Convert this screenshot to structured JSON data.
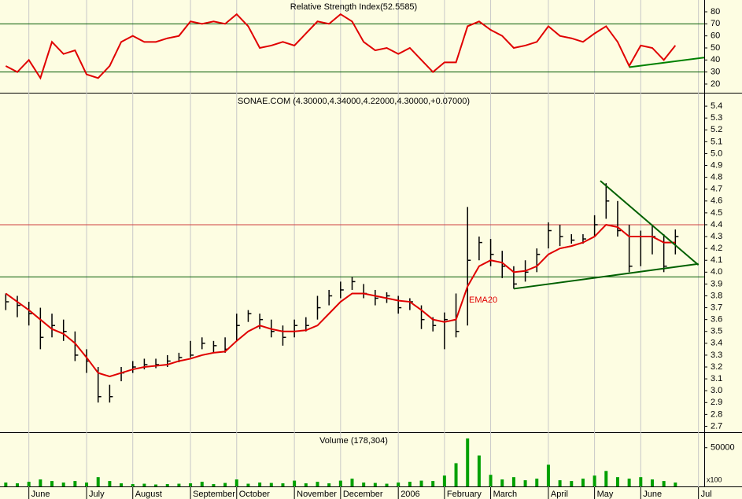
{
  "chart_data": [
    {
      "type": "line",
      "title": "Relative Strength Index(52.5585)",
      "ylim": [
        12.8,
        89.8
      ],
      "yticks": [
        20,
        30,
        40,
        50,
        60,
        70,
        80
      ],
      "hlines": [
        {
          "value": 70,
          "color": "#005a00"
        },
        {
          "value": 30,
          "color": "#005a00"
        }
      ],
      "trendlines": [
        {
          "x": [
            54,
            60.5
          ],
          "y": [
            34,
            42
          ],
          "color": "#008000"
        }
      ],
      "series": [
        {
          "name": "RSI",
          "color": "#e00000",
          "values": [
            35,
            30,
            40,
            25,
            55,
            45,
            48,
            28,
            25,
            35,
            55,
            60,
            55,
            55,
            58,
            60,
            72,
            70,
            72,
            70,
            78,
            68,
            50,
            52,
            55,
            52,
            62,
            72,
            70,
            78,
            72,
            55,
            48,
            50,
            45,
            50,
            40,
            30,
            38,
            38,
            68,
            72,
            65,
            60,
            50,
            52,
            55,
            68,
            60,
            58,
            55,
            62,
            68,
            55,
            35,
            52,
            50,
            40,
            52,
            null,
            null
          ]
        }
      ]
    },
    {
      "type": "hlc",
      "title": "SONAE.COM (4.30000,4.34000,4.22000,4.30000,+0.07000)",
      "ylim": [
        2.65,
        5.5
      ],
      "yticks": [
        {
          "value": 2.7,
          "label": "2.7"
        },
        {
          "value": 2.8,
          "label": "2.8"
        },
        {
          "value": 2.9,
          "label": "2.9"
        },
        {
          "value": 3.0,
          "label": "3.0"
        },
        {
          "value": 3.1,
          "label": "3.1"
        },
        {
          "value": 3.2,
          "label": "3.2"
        },
        {
          "value": 3.3,
          "label": "3.3"
        },
        {
          "value": 3.4,
          "label": "3.4"
        },
        {
          "value": 3.5,
          "label": "3.5"
        },
        {
          "value": 3.6,
          "label": "3.6"
        },
        {
          "value": 3.7,
          "label": "3.7"
        },
        {
          "value": 3.8,
          "label": "3.8"
        },
        {
          "value": 3.9,
          "label": "3.9"
        },
        {
          "value": 4.0,
          "label": "4.0"
        },
        {
          "value": 4.1,
          "label": "4.1"
        },
        {
          "value": 4.2,
          "label": "4.2"
        },
        {
          "value": 4.3,
          "label": "4.3"
        },
        {
          "value": 4.4,
          "label": "4.4"
        },
        {
          "value": 4.5,
          "label": "4.5"
        },
        {
          "value": 4.6,
          "label": "4.6"
        },
        {
          "value": 4.7,
          "label": "4.7"
        },
        {
          "value": 4.8,
          "label": "4.8"
        },
        {
          "value": 4.9,
          "label": "4.9"
        },
        {
          "value": 5.0,
          "label": "5.0"
        },
        {
          "value": 5.1,
          "label": "5.1"
        },
        {
          "value": 5.2,
          "label": "5.2"
        },
        {
          "value": 5.3,
          "label": "5.3"
        },
        {
          "value": 5.4,
          "label": "5.4"
        }
      ],
      "hlines": [
        {
          "value": 4.4,
          "color": "#d04040"
        },
        {
          "value": 3.96,
          "color": "#005a00"
        }
      ],
      "trendlines": [
        {
          "x": [
            51.5,
            60
          ],
          "y": [
            4.77,
            4.06
          ],
          "color": "#006000"
        },
        {
          "x": [
            44,
            60
          ],
          "y": [
            3.86,
            4.07
          ],
          "color": "#006000"
        }
      ],
      "bar_color": "#000000",
      "high": [
        3.82,
        3.8,
        3.75,
        3.7,
        3.65,
        3.6,
        3.5,
        3.35,
        3.2,
        3.05,
        3.2,
        3.25,
        3.27,
        3.27,
        3.3,
        3.32,
        3.42,
        3.45,
        3.42,
        3.45,
        3.65,
        3.68,
        3.65,
        3.6,
        3.55,
        3.6,
        3.62,
        3.8,
        3.85,
        3.92,
        3.96,
        3.9,
        3.85,
        3.83,
        3.8,
        3.78,
        3.72,
        3.62,
        3.66,
        3.82,
        4.55,
        4.3,
        4.28,
        4.18,
        4.05,
        4.1,
        4.2,
        4.42,
        4.4,
        4.32,
        4.32,
        4.48,
        4.75,
        4.6,
        4.4,
        4.35,
        4.4,
        4.32,
        4.36,
        null,
        null
      ],
      "low": [
        3.68,
        3.62,
        3.55,
        3.35,
        3.45,
        3.42,
        3.25,
        3.15,
        2.9,
        2.9,
        3.08,
        3.15,
        3.18,
        3.19,
        3.2,
        3.24,
        3.28,
        3.35,
        3.32,
        3.32,
        3.42,
        3.58,
        3.52,
        3.45,
        3.38,
        3.45,
        3.5,
        3.6,
        3.72,
        3.78,
        3.85,
        3.78,
        3.72,
        3.74,
        3.65,
        3.68,
        3.52,
        3.5,
        3.35,
        3.45,
        3.55,
        4.1,
        4.05,
        3.95,
        3.86,
        3.92,
        4.0,
        4.2,
        4.22,
        4.24,
        4.24,
        4.3,
        4.45,
        4.3,
        4.0,
        4.05,
        4.15,
        4.0,
        4.15,
        null,
        null
      ],
      "close": [
        3.75,
        3.72,
        3.65,
        3.45,
        3.55,
        3.5,
        3.3,
        3.25,
        2.95,
        2.95,
        3.15,
        3.2,
        3.22,
        3.22,
        3.25,
        3.28,
        3.3,
        3.4,
        3.38,
        3.35,
        3.55,
        3.65,
        3.6,
        3.5,
        3.45,
        3.55,
        3.55,
        3.7,
        3.8,
        3.85,
        3.92,
        3.82,
        3.78,
        3.8,
        3.7,
        3.75,
        3.6,
        3.55,
        3.6,
        3.5,
        4.1,
        4.25,
        4.15,
        4.05,
        3.9,
        4.0,
        4.15,
        4.35,
        4.3,
        4.27,
        4.28,
        4.4,
        4.6,
        4.35,
        4.05,
        4.3,
        4.3,
        4.05,
        4.3,
        null,
        null
      ],
      "series": [
        {
          "name": "EMA20",
          "color": "#e00000",
          "values": [
            3.82,
            3.75,
            3.68,
            3.6,
            3.52,
            3.48,
            3.4,
            3.28,
            3.15,
            3.12,
            3.15,
            3.18,
            3.2,
            3.21,
            3.22,
            3.25,
            3.27,
            3.3,
            3.32,
            3.33,
            3.42,
            3.5,
            3.55,
            3.52,
            3.5,
            3.5,
            3.51,
            3.55,
            3.65,
            3.75,
            3.82,
            3.82,
            3.8,
            3.78,
            3.76,
            3.75,
            3.68,
            3.6,
            3.58,
            3.6,
            3.88,
            4.05,
            4.1,
            4.08,
            4.0,
            4.01,
            4.05,
            4.15,
            4.2,
            4.22,
            4.25,
            4.3,
            4.4,
            4.38,
            4.3,
            4.3,
            4.3,
            4.25,
            4.25,
            null,
            null
          ]
        }
      ]
    },
    {
      "type": "bar",
      "title": "Volume (178,304)",
      "unit_label": "x100",
      "color": "#00a000",
      "ylim": [
        0,
        68000
      ],
      "yticks": [
        50000
      ],
      "categories": [
        null,
        null,
        "June",
        null,
        null,
        null,
        null,
        "July",
        null,
        null,
        null,
        "August",
        null,
        null,
        null,
        null,
        "September",
        null,
        null,
        null,
        "October",
        null,
        null,
        null,
        null,
        "November",
        null,
        null,
        null,
        "December",
        null,
        null,
        null,
        null,
        "2006",
        null,
        null,
        null,
        "February",
        null,
        null,
        null,
        "March",
        null,
        null,
        null,
        null,
        "April",
        null,
        null,
        null,
        "May",
        null,
        null,
        null,
        "June",
        null,
        null,
        null,
        null,
        "Jul"
      ],
      "values": [
        5000,
        4000,
        6000,
        9000,
        7000,
        5000,
        7000,
        5000,
        12000,
        7000,
        4000,
        3000,
        3500,
        2500,
        3000,
        3500,
        4000,
        6000,
        3000,
        4500,
        9000,
        3500,
        5000,
        4500,
        4000,
        7500,
        4000,
        6000,
        4000,
        7500,
        10000,
        5000,
        4500,
        3500,
        5000,
        6000,
        7500,
        7000,
        14000,
        30000,
        62000,
        40000,
        15000,
        9000,
        12000,
        8000,
        10000,
        28000,
        8000,
        7000,
        10000,
        14000,
        20000,
        12000,
        10000,
        12000,
        9000,
        7000,
        5000,
        null,
        null
      ]
    }
  ]
}
